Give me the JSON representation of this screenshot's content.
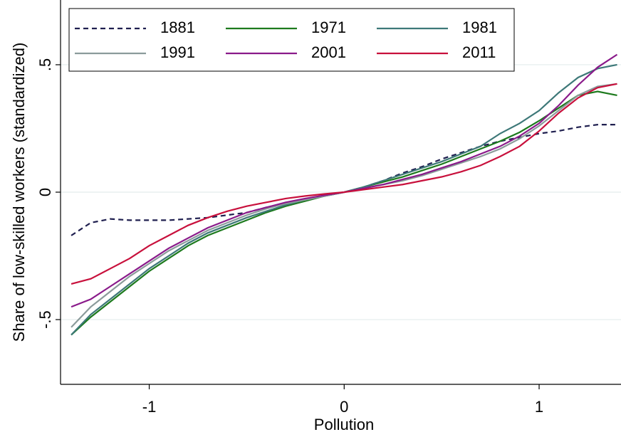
{
  "chart_data": {
    "type": "line",
    "xlabel": "Pollution",
    "ylabel": "Share of low-skilled workers (standardized)",
    "xlim": [
      -1.455,
      1.42
    ],
    "ylim": [
      -0.754,
      0.754
    ],
    "xticks": [
      -1,
      0,
      1
    ],
    "yticks": [
      {
        "value": -0.5,
        "label": "-.5"
      },
      0,
      {
        "value": 0.5,
        "label": ".5"
      }
    ],
    "grid": true,
    "x": [
      -1.4,
      -1.3,
      -1.2,
      -1.1,
      -1.0,
      -0.9,
      -0.8,
      -0.7,
      -0.6,
      -0.5,
      -0.4,
      -0.3,
      -0.2,
      -0.1,
      0,
      0.1,
      0.2,
      0.3,
      0.4,
      0.5,
      0.6,
      0.7,
      0.8,
      0.9,
      1.0,
      1.1,
      1.2,
      1.3,
      1.4
    ],
    "series": [
      {
        "name": "1881",
        "color": "#1f1f4f",
        "dashed": true,
        "values": [
          -0.17,
          -0.12,
          -0.105,
          -0.11,
          -0.11,
          -0.11,
          -0.105,
          -0.1,
          -0.09,
          -0.08,
          -0.06,
          -0.045,
          -0.03,
          -0.015,
          0,
          0.02,
          0.045,
          0.075,
          0.1,
          0.13,
          0.155,
          0.18,
          0.2,
          0.215,
          0.23,
          0.24,
          0.255,
          0.265,
          0.265
        ]
      },
      {
        "name": "1971",
        "color": "#1d7a1d",
        "values": [
          -0.56,
          -0.49,
          -0.43,
          -0.37,
          -0.31,
          -0.26,
          -0.21,
          -0.17,
          -0.14,
          -0.11,
          -0.08,
          -0.055,
          -0.035,
          -0.015,
          0,
          0.02,
          0.04,
          0.06,
          0.085,
          0.11,
          0.14,
          0.17,
          0.2,
          0.235,
          0.28,
          0.33,
          0.38,
          0.395,
          0.38
        ]
      },
      {
        "name": "1981",
        "color": "#3d7878",
        "values": [
          -0.56,
          -0.48,
          -0.42,
          -0.36,
          -0.3,
          -0.25,
          -0.2,
          -0.16,
          -0.13,
          -0.1,
          -0.075,
          -0.05,
          -0.03,
          -0.015,
          0,
          0.02,
          0.045,
          0.07,
          0.095,
          0.12,
          0.15,
          0.18,
          0.23,
          0.27,
          0.32,
          0.39,
          0.45,
          0.485,
          0.5
        ]
      },
      {
        "name": "1991",
        "color": "#8b9b9b",
        "values": [
          -0.53,
          -0.45,
          -0.39,
          -0.33,
          -0.28,
          -0.23,
          -0.19,
          -0.15,
          -0.12,
          -0.09,
          -0.065,
          -0.045,
          -0.03,
          -0.015,
          0,
          0.015,
          0.03,
          0.045,
          0.065,
          0.09,
          0.115,
          0.14,
          0.17,
          0.21,
          0.26,
          0.32,
          0.38,
          0.415,
          0.425
        ]
      },
      {
        "name": "2001",
        "color": "#8a1a8a",
        "values": [
          -0.45,
          -0.42,
          -0.37,
          -0.32,
          -0.27,
          -0.22,
          -0.18,
          -0.14,
          -0.11,
          -0.08,
          -0.06,
          -0.04,
          -0.025,
          -0.012,
          0,
          0.015,
          0.03,
          0.05,
          0.07,
          0.095,
          0.12,
          0.15,
          0.18,
          0.22,
          0.27,
          0.34,
          0.42,
          0.49,
          0.54
        ]
      },
      {
        "name": "2011",
        "color": "#c8103c",
        "values": [
          -0.36,
          -0.34,
          -0.3,
          -0.26,
          -0.21,
          -0.17,
          -0.13,
          -0.1,
          -0.075,
          -0.055,
          -0.04,
          -0.025,
          -0.015,
          -0.007,
          0,
          0.01,
          0.02,
          0.03,
          0.045,
          0.06,
          0.08,
          0.105,
          0.14,
          0.18,
          0.24,
          0.31,
          0.37,
          0.41,
          0.425
        ]
      }
    ]
  }
}
